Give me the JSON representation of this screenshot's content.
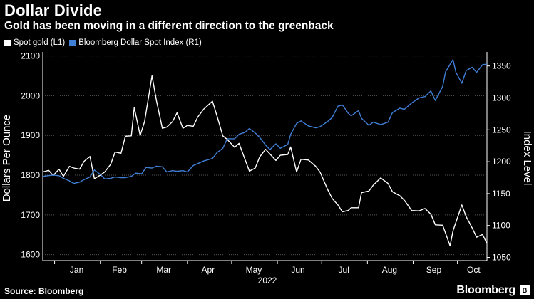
{
  "header": {
    "title": "Dollar Divide",
    "subtitle": "Gold has been moving in a different direction to the greenback"
  },
  "footer": {
    "source": "Source: Bloomberg",
    "brand": "Bloomberg"
  },
  "colors": {
    "background": "#000000",
    "gold_series": "#ffffff",
    "dollar_series": "#3f7fd6",
    "grid": "#555555"
  },
  "chart_data": {
    "type": "line",
    "title": "Dollar Divide",
    "subtitle": "Gold has been moving in a different direction to the greenback",
    "xlabel": "2022",
    "x_ticks": [
      "Jan",
      "Feb",
      "Mar",
      "Apr",
      "May",
      "Jun",
      "Jul",
      "Aug",
      "Sep",
      "Oct"
    ],
    "x_range": [
      "2021-12-24",
      "2022-10-21"
    ],
    "y_left": {
      "label": "Dollars Per Ounce",
      "range": [
        1585,
        2110
      ],
      "ticks": [
        1600,
        1700,
        1800,
        1900,
        2000,
        2100
      ]
    },
    "y_right": {
      "label": "Index Level",
      "range": [
        1045,
        1372
      ],
      "ticks": [
        1050,
        1100,
        1150,
        1200,
        1250,
        1300,
        1350
      ]
    },
    "grid": "horizontal dotted",
    "legend_position": "top-left",
    "series": [
      {
        "name": "Spot gold (L1)",
        "axis": "left",
        "color": "#ffffff",
        "points": [
          [
            "2021-12-24",
            1808
          ],
          [
            "2021-12-28",
            1812
          ],
          [
            "2021-12-31",
            1799
          ],
          [
            "2022-01-04",
            1815
          ],
          [
            "2022-01-07",
            1797
          ],
          [
            "2022-01-11",
            1822
          ],
          [
            "2022-01-14",
            1818
          ],
          [
            "2022-01-18",
            1815
          ],
          [
            "2022-01-21",
            1835
          ],
          [
            "2022-01-25",
            1847
          ],
          [
            "2022-01-28",
            1791
          ],
          [
            "2022-02-01",
            1800
          ],
          [
            "2022-02-04",
            1808
          ],
          [
            "2022-02-08",
            1827
          ],
          [
            "2022-02-11",
            1858
          ],
          [
            "2022-02-15",
            1855
          ],
          [
            "2022-02-18",
            1898
          ],
          [
            "2022-02-22",
            1899
          ],
          [
            "2022-02-24",
            1970
          ],
          [
            "2022-02-28",
            1900
          ],
          [
            "2022-03-03",
            1935
          ],
          [
            "2022-03-08",
            2050
          ],
          [
            "2022-03-11",
            1988
          ],
          [
            "2022-03-15",
            1918
          ],
          [
            "2022-03-18",
            1921
          ],
          [
            "2022-03-22",
            1935
          ],
          [
            "2022-03-25",
            1957
          ],
          [
            "2022-03-29",
            1918
          ],
          [
            "2022-04-01",
            1925
          ],
          [
            "2022-04-05",
            1923
          ],
          [
            "2022-04-08",
            1946
          ],
          [
            "2022-04-12",
            1966
          ],
          [
            "2022-04-18",
            1986
          ],
          [
            "2022-04-21",
            1950
          ],
          [
            "2022-04-25",
            1899
          ],
          [
            "2022-04-28",
            1890
          ],
          [
            "2022-05-03",
            1870
          ],
          [
            "2022-05-06",
            1880
          ],
          [
            "2022-05-10",
            1840
          ],
          [
            "2022-05-13",
            1810
          ],
          [
            "2022-05-17",
            1818
          ],
          [
            "2022-05-20",
            1846
          ],
          [
            "2022-05-24",
            1865
          ],
          [
            "2022-05-27",
            1853
          ],
          [
            "2022-05-31",
            1837
          ],
          [
            "2022-06-03",
            1850
          ],
          [
            "2022-06-08",
            1852
          ],
          [
            "2022-06-10",
            1871
          ],
          [
            "2022-06-14",
            1808
          ],
          [
            "2022-06-17",
            1840
          ],
          [
            "2022-06-22",
            1838
          ],
          [
            "2022-06-27",
            1822
          ],
          [
            "2022-06-30",
            1807
          ],
          [
            "2022-07-05",
            1764
          ],
          [
            "2022-07-08",
            1742
          ],
          [
            "2022-07-12",
            1725
          ],
          [
            "2022-07-15",
            1708
          ],
          [
            "2022-07-19",
            1711
          ],
          [
            "2022-07-21",
            1718
          ],
          [
            "2022-07-26",
            1718
          ],
          [
            "2022-07-28",
            1756
          ],
          [
            "2022-08-02",
            1760
          ],
          [
            "2022-08-05",
            1775
          ],
          [
            "2022-08-10",
            1793
          ],
          [
            "2022-08-15",
            1779
          ],
          [
            "2022-08-18",
            1758
          ],
          [
            "2022-08-23",
            1748
          ],
          [
            "2022-08-26",
            1737
          ],
          [
            "2022-08-31",
            1711
          ],
          [
            "2022-09-05",
            1710
          ],
          [
            "2022-09-09",
            1716
          ],
          [
            "2022-09-13",
            1702
          ],
          [
            "2022-09-16",
            1675
          ],
          [
            "2022-09-21",
            1674
          ],
          [
            "2022-09-26",
            1622
          ],
          [
            "2022-09-28",
            1660
          ],
          [
            "2022-10-04",
            1725
          ],
          [
            "2022-10-07",
            1695
          ],
          [
            "2022-10-11",
            1667
          ],
          [
            "2022-10-14",
            1644
          ],
          [
            "2022-10-18",
            1651
          ],
          [
            "2022-10-21",
            1628
          ]
        ]
      },
      {
        "name": "Bloomberg Dollar Spot Index (R1)",
        "axis": "right",
        "color": "#3f7fd6",
        "points": [
          [
            "2021-12-24",
            1177
          ],
          [
            "2021-12-31",
            1179
          ],
          [
            "2022-01-04",
            1178
          ],
          [
            "2022-01-07",
            1174
          ],
          [
            "2022-01-11",
            1170
          ],
          [
            "2022-01-14",
            1166
          ],
          [
            "2022-01-18",
            1168
          ],
          [
            "2022-01-21",
            1172
          ],
          [
            "2022-01-25",
            1176
          ],
          [
            "2022-01-28",
            1187
          ],
          [
            "2022-02-01",
            1180
          ],
          [
            "2022-02-04",
            1173
          ],
          [
            "2022-02-08",
            1174
          ],
          [
            "2022-02-11",
            1176
          ],
          [
            "2022-02-15",
            1175
          ],
          [
            "2022-02-18",
            1175
          ],
          [
            "2022-02-22",
            1177
          ],
          [
            "2022-02-25",
            1182
          ],
          [
            "2022-03-01",
            1181
          ],
          [
            "2022-03-04",
            1191
          ],
          [
            "2022-03-08",
            1190
          ],
          [
            "2022-03-11",
            1193
          ],
          [
            "2022-03-15",
            1192
          ],
          [
            "2022-03-18",
            1184
          ],
          [
            "2022-03-22",
            1186
          ],
          [
            "2022-03-25",
            1185
          ],
          [
            "2022-03-29",
            1186
          ],
          [
            "2022-04-01",
            1184
          ],
          [
            "2022-04-05",
            1194
          ],
          [
            "2022-04-08",
            1197
          ],
          [
            "2022-04-12",
            1201
          ],
          [
            "2022-04-18",
            1205
          ],
          [
            "2022-04-21",
            1214
          ],
          [
            "2022-04-25",
            1221
          ],
          [
            "2022-04-28",
            1236
          ],
          [
            "2022-05-03",
            1236
          ],
          [
            "2022-05-06",
            1243
          ],
          [
            "2022-05-10",
            1246
          ],
          [
            "2022-05-13",
            1252
          ],
          [
            "2022-05-17",
            1245
          ],
          [
            "2022-05-20",
            1238
          ],
          [
            "2022-05-24",
            1226
          ],
          [
            "2022-05-27",
            1219
          ],
          [
            "2022-05-31",
            1228
          ],
          [
            "2022-06-03",
            1221
          ],
          [
            "2022-06-08",
            1227
          ],
          [
            "2022-06-10",
            1243
          ],
          [
            "2022-06-14",
            1260
          ],
          [
            "2022-06-17",
            1264
          ],
          [
            "2022-06-22",
            1256
          ],
          [
            "2022-06-27",
            1253
          ],
          [
            "2022-06-30",
            1255
          ],
          [
            "2022-07-05",
            1263
          ],
          [
            "2022-07-08",
            1269
          ],
          [
            "2022-07-12",
            1287
          ],
          [
            "2022-07-15",
            1289
          ],
          [
            "2022-07-19",
            1276
          ],
          [
            "2022-07-21",
            1272
          ],
          [
            "2022-07-26",
            1280
          ],
          [
            "2022-07-28",
            1268
          ],
          [
            "2022-08-02",
            1257
          ],
          [
            "2022-08-05",
            1262
          ],
          [
            "2022-08-10",
            1258
          ],
          [
            "2022-08-15",
            1262
          ],
          [
            "2022-08-18",
            1277
          ],
          [
            "2022-08-23",
            1284
          ],
          [
            "2022-08-26",
            1282
          ],
          [
            "2022-08-31",
            1292
          ],
          [
            "2022-09-05",
            1300
          ],
          [
            "2022-09-09",
            1302
          ],
          [
            "2022-09-13",
            1311
          ],
          [
            "2022-09-16",
            1296
          ],
          [
            "2022-09-21",
            1318
          ],
          [
            "2022-09-23",
            1341
          ],
          [
            "2022-09-28",
            1360
          ],
          [
            "2022-09-30",
            1340
          ],
          [
            "2022-10-04",
            1323
          ],
          [
            "2022-10-07",
            1343
          ],
          [
            "2022-10-11",
            1348
          ],
          [
            "2022-10-14",
            1340
          ],
          [
            "2022-10-18",
            1352
          ],
          [
            "2022-10-21",
            1353
          ]
        ]
      }
    ]
  }
}
